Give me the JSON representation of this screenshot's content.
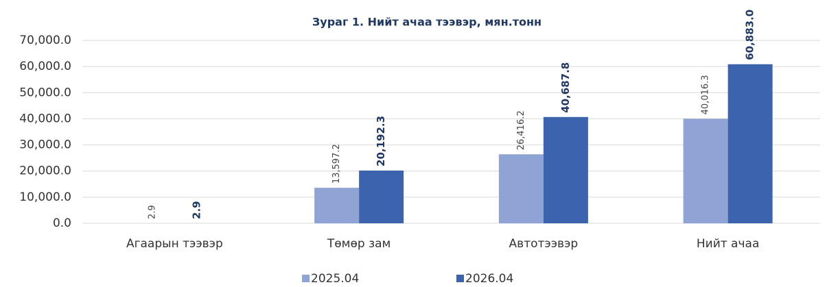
{
  "chart_data": {
    "type": "bar",
    "title": "Зураг 1. Нийт ачаа тээвэр, мян.тонн",
    "categories": [
      "Агаарын тээвэр",
      "Төмөр зам",
      "Автотээвэр",
      "Нийт ачаа"
    ],
    "series": [
      {
        "name": "2025.04",
        "color": "#8fa3d4",
        "values": [
          2.9,
          13597.2,
          26416.2,
          40016.3
        ],
        "value_labels": [
          "2.9",
          "13,597.2",
          "26,416.2",
          "40,016.3"
        ]
      },
      {
        "name": "2026.04",
        "color": "#3c63ad",
        "values": [
          2.9,
          20192.3,
          40687.8,
          60883.0
        ],
        "value_labels": [
          "2.9",
          "20,192.3",
          "40,687.8",
          "60,883.0"
        ]
      }
    ],
    "ylim": [
      0,
      70000
    ],
    "yticks": [
      {
        "value": 0,
        "label": "0.0"
      },
      {
        "value": 10000,
        "label": "10,000.0"
      },
      {
        "value": 20000,
        "label": "20,000.0"
      },
      {
        "value": 30000,
        "label": "30,000.0"
      },
      {
        "value": 40000,
        "label": "40,000.0"
      },
      {
        "value": 50000,
        "label": "50,000.0"
      },
      {
        "value": 60000,
        "label": "60,000.0"
      },
      {
        "value": 70000,
        "label": "70,000.0"
      }
    ],
    "grid": true,
    "legend": "bottom"
  }
}
